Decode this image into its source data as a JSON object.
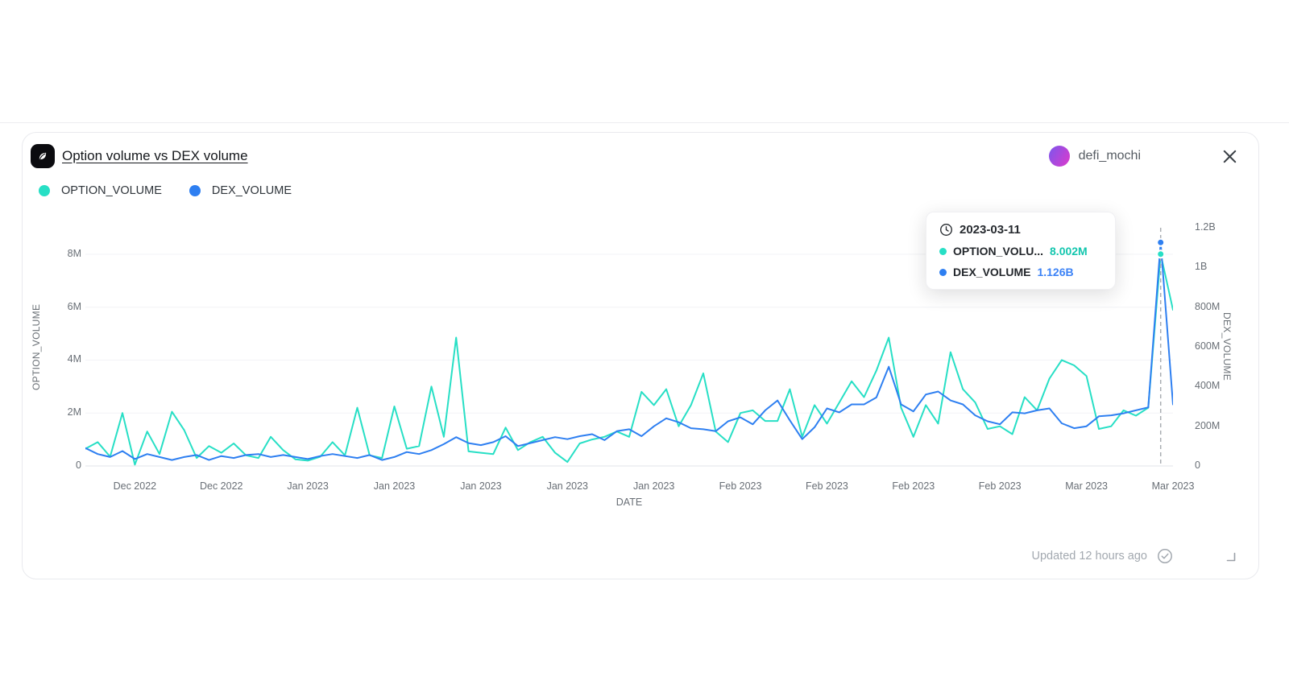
{
  "card": {
    "title": "Option volume vs DEX volume",
    "author": "defi_mochi",
    "updated": "Updated 12 hours ago"
  },
  "legend": [
    {
      "label": "OPTION_VOLUME",
      "color": "#27DFC5"
    },
    {
      "label": "DEX_VOLUME",
      "color": "#2E7FF1"
    }
  ],
  "tooltip": {
    "date": "2023-03-11",
    "rows": [
      {
        "label": "OPTION_VOLU...",
        "value": "8.002M",
        "color": "#27DFC5",
        "value_color": "#14C6AE"
      },
      {
        "label": "DEX_VOLUME",
        "value": "1.126B",
        "color": "#2E7FF1",
        "value_color": "#3B82F6"
      }
    ]
  },
  "chart_data": {
    "type": "line",
    "title": "Option volume vs DEX volume",
    "xlabel": "DATE",
    "legend_position": "top-left",
    "grid": "horizontal",
    "y_left": {
      "label": "OPTION_VOLUME",
      "max_millions": 9,
      "ticks": [
        {
          "label": "0",
          "value": 0
        },
        {
          "label": "2M",
          "value": 2
        },
        {
          "label": "4M",
          "value": 4
        },
        {
          "label": "6M",
          "value": 6
        },
        {
          "label": "8M",
          "value": 8
        }
      ]
    },
    "y_right": {
      "label": "DEX_VOLUME",
      "max_millions": 1200,
      "ticks": [
        {
          "label": "0",
          "value": 0
        },
        {
          "label": "200M",
          "value": 200
        },
        {
          "label": "400M",
          "value": 400
        },
        {
          "label": "600M",
          "value": 600
        },
        {
          "label": "800M",
          "value": 800
        },
        {
          "label": "1B",
          "value": 1000
        },
        {
          "label": "1.2B",
          "value": 1200
        }
      ]
    },
    "x_ticks": [
      {
        "index": 4,
        "label": "Dec 2022"
      },
      {
        "index": 11,
        "label": "Dec 2022"
      },
      {
        "index": 18,
        "label": "Jan 2023"
      },
      {
        "index": 25,
        "label": "Jan 2023"
      },
      {
        "index": 32,
        "label": "Jan 2023"
      },
      {
        "index": 39,
        "label": "Jan 2023"
      },
      {
        "index": 46,
        "label": "Jan 2023"
      },
      {
        "index": 53,
        "label": "Feb 2023"
      },
      {
        "index": 60,
        "label": "Feb 2023"
      },
      {
        "index": 67,
        "label": "Feb 2023"
      },
      {
        "index": 74,
        "label": "Feb 2023"
      },
      {
        "index": 81,
        "label": "Mar 2023"
      },
      {
        "index": 88,
        "label": "Mar 2023"
      }
    ],
    "highlight_index": 87,
    "highlight_date": "2023-03-11",
    "dates": [
      "2022-12-14",
      "2022-12-15",
      "2022-12-16",
      "2022-12-17",
      "2022-12-18",
      "2022-12-19",
      "2022-12-20",
      "2022-12-21",
      "2022-12-22",
      "2022-12-23",
      "2022-12-24",
      "2022-12-25",
      "2022-12-26",
      "2022-12-27",
      "2022-12-28",
      "2022-12-29",
      "2022-12-30",
      "2022-12-31",
      "2023-01-01",
      "2023-01-02",
      "2023-01-03",
      "2023-01-04",
      "2023-01-05",
      "2023-01-06",
      "2023-01-07",
      "2023-01-08",
      "2023-01-09",
      "2023-01-10",
      "2023-01-11",
      "2023-01-12",
      "2023-01-13",
      "2023-01-14",
      "2023-01-15",
      "2023-01-16",
      "2023-01-17",
      "2023-01-18",
      "2023-01-19",
      "2023-01-20",
      "2023-01-21",
      "2023-01-22",
      "2023-01-23",
      "2023-01-24",
      "2023-01-25",
      "2023-01-26",
      "2023-01-27",
      "2023-01-28",
      "2023-01-29",
      "2023-01-30",
      "2023-01-31",
      "2023-02-01",
      "2023-02-02",
      "2023-02-03",
      "2023-02-04",
      "2023-02-05",
      "2023-02-06",
      "2023-02-07",
      "2023-02-08",
      "2023-02-09",
      "2023-02-10",
      "2023-02-11",
      "2023-02-12",
      "2023-02-13",
      "2023-02-14",
      "2023-02-15",
      "2023-02-16",
      "2023-02-17",
      "2023-02-18",
      "2023-02-19",
      "2023-02-20",
      "2023-02-21",
      "2023-02-22",
      "2023-02-23",
      "2023-02-24",
      "2023-02-25",
      "2023-02-26",
      "2023-02-27",
      "2023-02-28",
      "2023-03-01",
      "2023-03-02",
      "2023-03-03",
      "2023-03-04",
      "2023-03-05",
      "2023-03-06",
      "2023-03-07",
      "2023-03-08",
      "2023-03-09",
      "2023-03-10",
      "2023-03-11",
      "2023-03-12"
    ],
    "series": [
      {
        "name": "OPTION_VOLUME",
        "axis": "left",
        "color": "#27DFC5",
        "values_millions": [
          0.65,
          0.9,
          0.35,
          2.0,
          0.05,
          1.3,
          0.45,
          2.05,
          1.35,
          0.3,
          0.75,
          0.5,
          0.85,
          0.4,
          0.3,
          1.1,
          0.6,
          0.25,
          0.2,
          0.35,
          0.9,
          0.4,
          2.2,
          0.4,
          0.3,
          2.25,
          0.65,
          0.75,
          3.0,
          1.1,
          4.85,
          0.55,
          0.5,
          0.45,
          1.45,
          0.6,
          0.9,
          1.1,
          0.5,
          0.15,
          0.85,
          1.0,
          1.1,
          1.3,
          1.1,
          2.8,
          2.3,
          2.9,
          1.5,
          2.3,
          3.5,
          1.3,
          0.9,
          2.0,
          2.1,
          1.7,
          1.7,
          2.9,
          1.1,
          2.3,
          1.6,
          2.4,
          3.2,
          2.6,
          3.6,
          4.85,
          2.2,
          1.1,
          2.3,
          1.6,
          4.3,
          2.9,
          2.4,
          1.4,
          1.5,
          1.2,
          2.6,
          2.1,
          3.3,
          4.0,
          3.8,
          3.4,
          1.4,
          1.5,
          2.1,
          1.9,
          2.2,
          8.002,
          5.9
        ]
      },
      {
        "name": "DEX_VOLUME",
        "axis": "right",
        "color": "#2E7FF1",
        "values_millions": [
          90,
          60,
          45,
          75,
          35,
          60,
          45,
          30,
          45,
          55,
          30,
          50,
          40,
          55,
          60,
          45,
          55,
          45,
          35,
          50,
          60,
          50,
          40,
          55,
          30,
          45,
          70,
          60,
          80,
          110,
          145,
          115,
          105,
          120,
          150,
          100,
          115,
          130,
          145,
          135,
          150,
          160,
          130,
          175,
          185,
          150,
          200,
          240,
          220,
          190,
          185,
          175,
          225,
          245,
          210,
          280,
          330,
          230,
          135,
          195,
          290,
          270,
          310,
          310,
          345,
          500,
          310,
          275,
          360,
          375,
          330,
          310,
          255,
          225,
          210,
          270,
          265,
          280,
          290,
          215,
          190,
          200,
          250,
          255,
          265,
          280,
          295,
          1126,
          310
        ]
      }
    ]
  }
}
